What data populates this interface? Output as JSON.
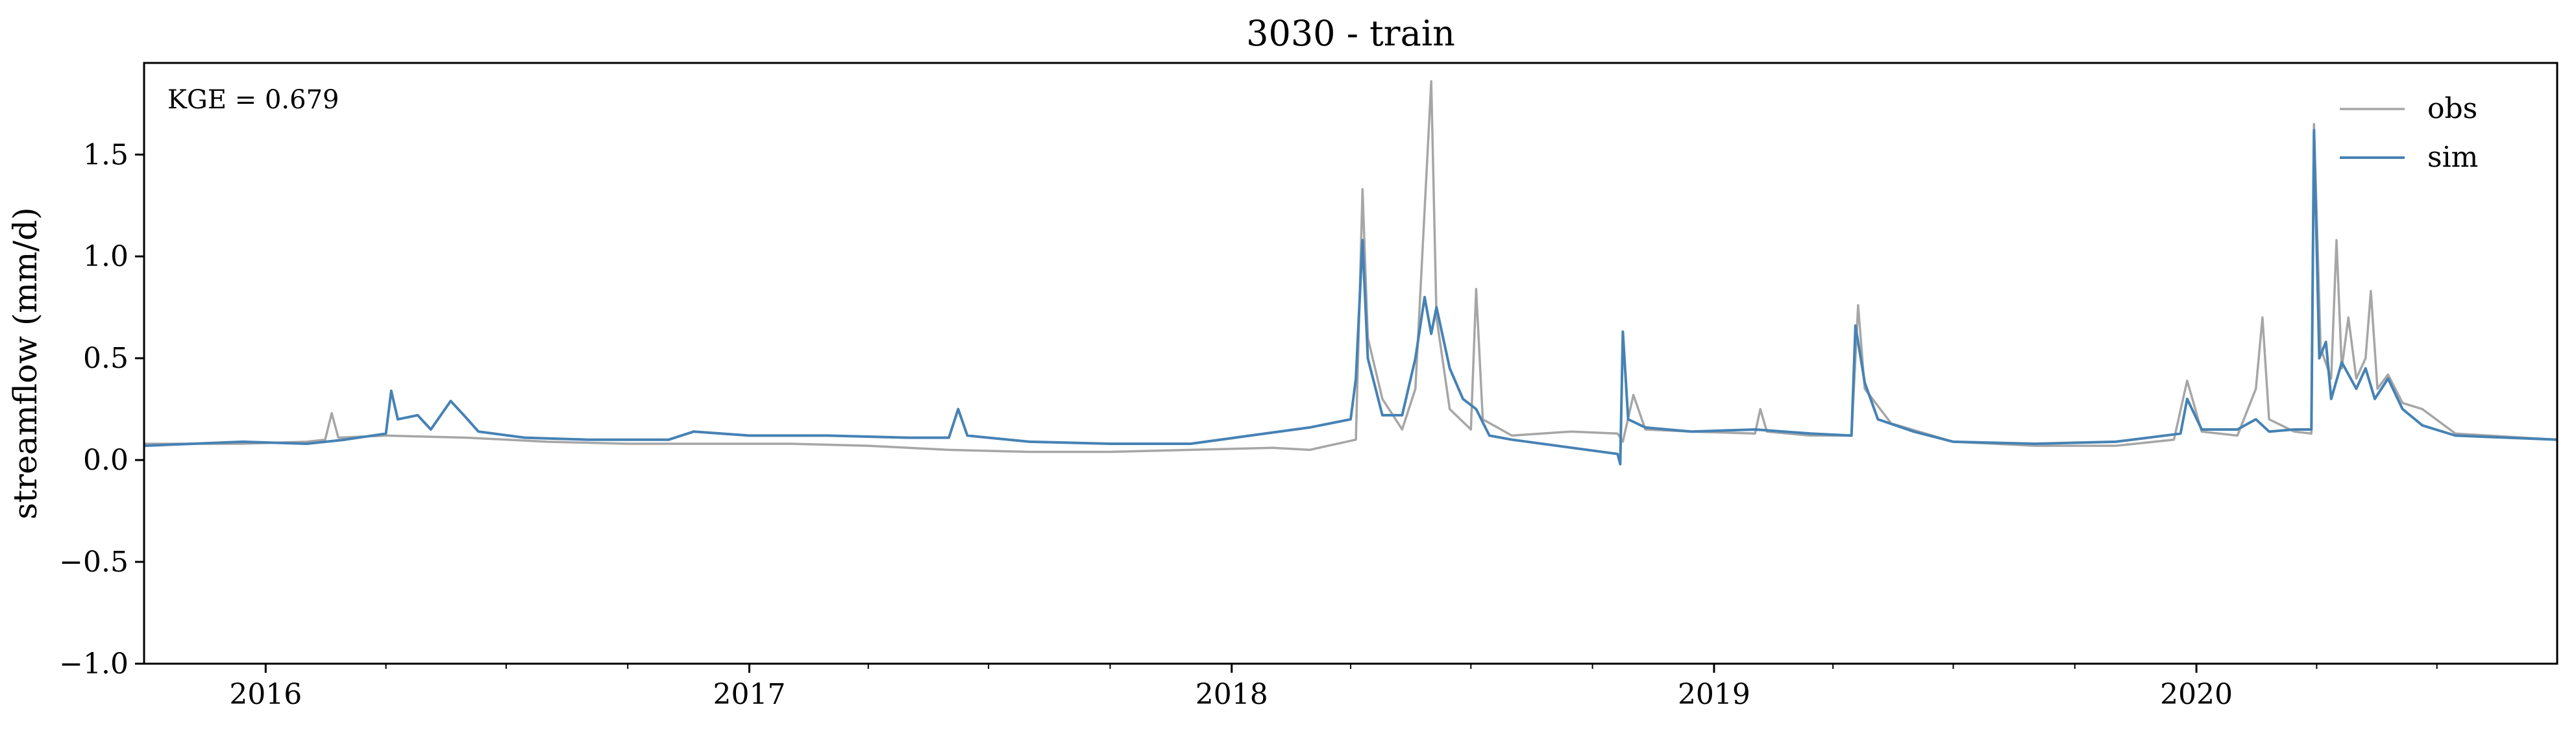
{
  "chart_data": {
    "type": "line",
    "title": "3030 - train",
    "xlabel": "",
    "ylabel": "streamflow (mm/d)",
    "xlim": [
      "2015-10-01",
      "2020-09-30"
    ],
    "ylim": [
      -1.0,
      1.95
    ],
    "x_ticks": [
      "2016",
      "2017",
      "2018",
      "2019",
      "2020"
    ],
    "y_ticks": [
      "−1.0",
      "−0.5",
      "0.0",
      "0.5",
      "1.0",
      "1.5"
    ],
    "grid": false,
    "legend": "top-right",
    "annotation": "KGE = 0.679",
    "series": [
      {
        "name": "obs",
        "color": "#a6a6a6",
        "points": [
          [
            "2015-10-01",
            0.08
          ],
          [
            "2015-12-15",
            0.08
          ],
          [
            "2016-02-01",
            0.09
          ],
          [
            "2016-02-15",
            0.1
          ],
          [
            "2016-02-20",
            0.23
          ],
          [
            "2016-02-25",
            0.11
          ],
          [
            "2016-04-01",
            0.12
          ],
          [
            "2016-06-01",
            0.11
          ],
          [
            "2016-08-01",
            0.09
          ],
          [
            "2016-10-01",
            0.08
          ],
          [
            "2016-12-01",
            0.08
          ],
          [
            "2017-02-01",
            0.08
          ],
          [
            "2017-04-01",
            0.07
          ],
          [
            "2017-06-01",
            0.05
          ],
          [
            "2017-08-01",
            0.04
          ],
          [
            "2017-10-01",
            0.04
          ],
          [
            "2017-12-01",
            0.05
          ],
          [
            "2018-02-01",
            0.06
          ],
          [
            "2018-03-01",
            0.05
          ],
          [
            "2018-03-15",
            0.07
          ],
          [
            "2018-04-05",
            0.1
          ],
          [
            "2018-04-10",
            1.33
          ],
          [
            "2018-04-14",
            0.6
          ],
          [
            "2018-04-25",
            0.3
          ],
          [
            "2018-05-10",
            0.15
          ],
          [
            "2018-05-20",
            0.35
          ],
          [
            "2018-06-01",
            1.86
          ],
          [
            "2018-06-05",
            0.7
          ],
          [
            "2018-06-15",
            0.25
          ],
          [
            "2018-07-01",
            0.15
          ],
          [
            "2018-07-05",
            0.84
          ],
          [
            "2018-07-10",
            0.2
          ],
          [
            "2018-08-01",
            0.12
          ],
          [
            "2018-09-15",
            0.14
          ],
          [
            "2018-10-20",
            0.13
          ],
          [
            "2018-10-24",
            0.09
          ],
          [
            "2018-11-01",
            0.32
          ],
          [
            "2018-11-10",
            0.15
          ],
          [
            "2018-12-15",
            0.14
          ],
          [
            "2019-02-01",
            0.13
          ],
          [
            "2019-02-05",
            0.25
          ],
          [
            "2019-02-10",
            0.14
          ],
          [
            "2019-03-15",
            0.12
          ],
          [
            "2019-04-15",
            0.12
          ],
          [
            "2019-04-20",
            0.76
          ],
          [
            "2019-04-25",
            0.35
          ],
          [
            "2019-05-15",
            0.18
          ],
          [
            "2019-07-01",
            0.09
          ],
          [
            "2019-09-01",
            0.07
          ],
          [
            "2019-11-01",
            0.07
          ],
          [
            "2019-12-15",
            0.1
          ],
          [
            "2019-12-25",
            0.39
          ],
          [
            "2020-01-05",
            0.14
          ],
          [
            "2020-02-01",
            0.12
          ],
          [
            "2020-02-15",
            0.35
          ],
          [
            "2020-02-20",
            0.7
          ],
          [
            "2020-02-25",
            0.2
          ],
          [
            "2020-03-15",
            0.14
          ],
          [
            "2020-03-28",
            0.13
          ],
          [
            "2020-03-30",
            1.65
          ],
          [
            "2020-04-04",
            0.55
          ],
          [
            "2020-04-12",
            0.4
          ],
          [
            "2020-04-16",
            1.08
          ],
          [
            "2020-04-20",
            0.45
          ],
          [
            "2020-04-25",
            0.7
          ],
          [
            "2020-05-01",
            0.4
          ],
          [
            "2020-05-08",
            0.5
          ],
          [
            "2020-05-12",
            0.83
          ],
          [
            "2020-05-17",
            0.35
          ],
          [
            "2020-05-25",
            0.42
          ],
          [
            "2020-06-05",
            0.28
          ],
          [
            "2020-06-20",
            0.25
          ],
          [
            "2020-07-15",
            0.13
          ],
          [
            "2020-09-30",
            0.1
          ]
        ]
      },
      {
        "name": "sim",
        "color": "#4682b4",
        "points": [
          [
            "2015-10-01",
            0.07
          ],
          [
            "2015-12-15",
            0.09
          ],
          [
            "2016-02-01",
            0.08
          ],
          [
            "2016-03-01",
            0.1
          ],
          [
            "2016-04-01",
            0.13
          ],
          [
            "2016-04-05",
            0.34
          ],
          [
            "2016-04-10",
            0.2
          ],
          [
            "2016-04-25",
            0.22
          ],
          [
            "2016-05-05",
            0.15
          ],
          [
            "2016-05-20",
            0.29
          ],
          [
            "2016-05-30",
            0.22
          ],
          [
            "2016-06-10",
            0.14
          ],
          [
            "2016-07-15",
            0.11
          ],
          [
            "2016-09-01",
            0.1
          ],
          [
            "2016-11-01",
            0.1
          ],
          [
            "2016-11-20",
            0.14
          ],
          [
            "2017-01-01",
            0.12
          ],
          [
            "2017-03-01",
            0.12
          ],
          [
            "2017-05-01",
            0.11
          ],
          [
            "2017-06-01",
            0.11
          ],
          [
            "2017-06-08",
            0.25
          ],
          [
            "2017-06-15",
            0.12
          ],
          [
            "2017-08-01",
            0.09
          ],
          [
            "2017-10-01",
            0.08
          ],
          [
            "2017-12-01",
            0.08
          ],
          [
            "2018-01-15",
            0.12
          ],
          [
            "2018-03-01",
            0.16
          ],
          [
            "2018-04-01",
            0.2
          ],
          [
            "2018-04-05",
            0.4
          ],
          [
            "2018-04-10",
            1.08
          ],
          [
            "2018-04-14",
            0.5
          ],
          [
            "2018-04-25",
            0.22
          ],
          [
            "2018-05-10",
            0.22
          ],
          [
            "2018-05-20",
            0.5
          ],
          [
            "2018-05-27",
            0.8
          ],
          [
            "2018-06-01",
            0.62
          ],
          [
            "2018-06-05",
            0.75
          ],
          [
            "2018-06-15",
            0.45
          ],
          [
            "2018-06-25",
            0.3
          ],
          [
            "2018-07-05",
            0.25
          ],
          [
            "2018-07-15",
            0.12
          ],
          [
            "2018-08-01",
            0.1
          ],
          [
            "2018-10-20",
            0.03
          ],
          [
            "2018-10-22",
            -0.02
          ],
          [
            "2018-10-24",
            0.63
          ],
          [
            "2018-10-28",
            0.2
          ],
          [
            "2018-11-10",
            0.16
          ],
          [
            "2018-12-15",
            0.14
          ],
          [
            "2019-02-01",
            0.15
          ],
          [
            "2019-03-15",
            0.13
          ],
          [
            "2019-04-15",
            0.12
          ],
          [
            "2019-04-18",
            0.66
          ],
          [
            "2019-04-25",
            0.38
          ],
          [
            "2019-05-05",
            0.2
          ],
          [
            "2019-06-01",
            0.14
          ],
          [
            "2019-07-01",
            0.09
          ],
          [
            "2019-09-01",
            0.08
          ],
          [
            "2019-11-01",
            0.09
          ],
          [
            "2019-12-20",
            0.13
          ],
          [
            "2019-12-25",
            0.3
          ],
          [
            "2020-01-05",
            0.15
          ],
          [
            "2020-02-01",
            0.15
          ],
          [
            "2020-02-15",
            0.2
          ],
          [
            "2020-02-25",
            0.14
          ],
          [
            "2020-03-15",
            0.15
          ],
          [
            "2020-03-28",
            0.15
          ],
          [
            "2020-03-30",
            1.62
          ],
          [
            "2020-04-03",
            0.5
          ],
          [
            "2020-04-08",
            0.58
          ],
          [
            "2020-04-12",
            0.3
          ],
          [
            "2020-04-20",
            0.48
          ],
          [
            "2020-05-01",
            0.35
          ],
          [
            "2020-05-08",
            0.45
          ],
          [
            "2020-05-15",
            0.3
          ],
          [
            "2020-05-25",
            0.4
          ],
          [
            "2020-06-05",
            0.25
          ],
          [
            "2020-06-20",
            0.17
          ],
          [
            "2020-07-15",
            0.12
          ],
          [
            "2020-09-30",
            0.1
          ]
        ]
      }
    ]
  }
}
